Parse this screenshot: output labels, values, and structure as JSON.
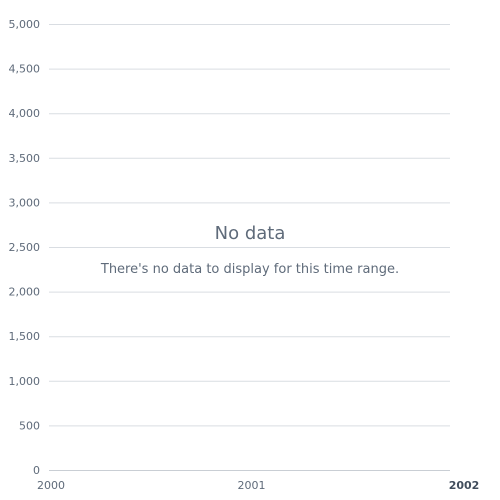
{
  "chart_data": {
    "type": "line",
    "title": "",
    "xlabel": "",
    "ylabel": "",
    "x": [],
    "series": [],
    "ylim": [
      0,
      5000
    ],
    "y_ticks": [
      0,
      500,
      1000,
      1500,
      2000,
      2500,
      3000,
      3500,
      4000,
      4500,
      5000
    ],
    "y_tick_labels": [
      "0",
      "500",
      "1,000",
      "1,500",
      "2,000",
      "2,500",
      "3,000",
      "3,500",
      "4,000",
      "4,500",
      "5,000"
    ],
    "x_ticks": [
      2000,
      2001,
      2002
    ],
    "x_tick_labels": [
      "2000",
      "2001",
      "2002"
    ],
    "grid": true,
    "empty_state": {
      "title": "No data",
      "description": "There's no data to display for this time range."
    }
  }
}
